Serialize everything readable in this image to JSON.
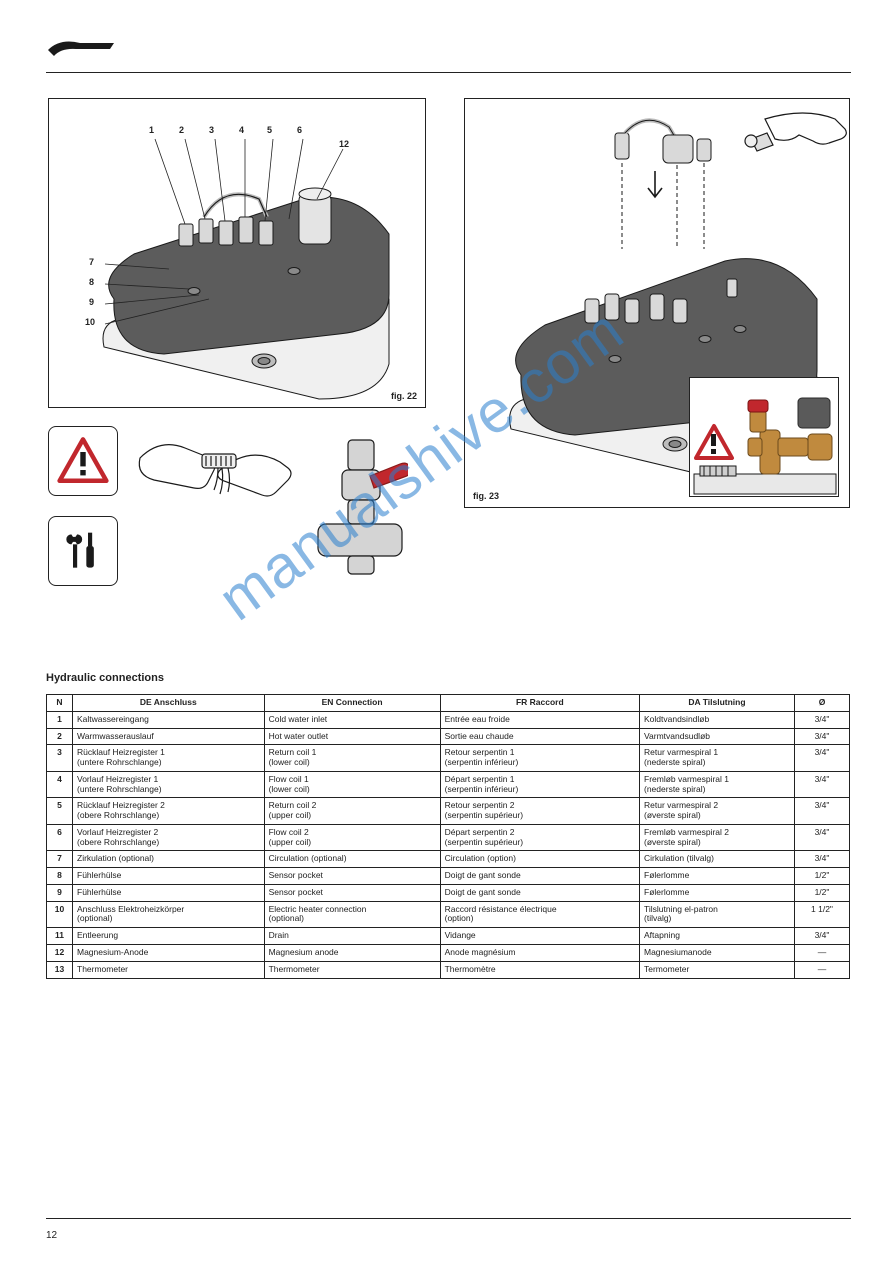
{
  "page": {
    "number": "12"
  },
  "watermark": "manualshive.com",
  "section_title": "Hydraulic connections",
  "figures": {
    "fig22": {
      "label": "fig. 22",
      "callouts": [
        "1",
        "2",
        "3",
        "4",
        "5",
        "6",
        "7",
        "8",
        "9",
        "10"
      ],
      "tank": {
        "top_color": "#5c5c5c",
        "body_color": "#f2f2f2",
        "outline": "#1a1a1a"
      }
    },
    "fig23": {
      "label": "fig. 23",
      "wrench_hint": true,
      "arrow_down": true,
      "inset_warning": true,
      "valve_brass": "#c08a3e",
      "valve_knob": "#c1272d",
      "actuator_grey": "#5a5a5a"
    },
    "warn_box": {
      "triangle_stroke": "#c1272d",
      "triangle_fill": "#ffffff"
    },
    "tool_box": {
      "wrench_color": "#1a1a1a",
      "screwdriver_color": "#1a1a1a"
    }
  },
  "table": {
    "columns": [
      {
        "hdr_n": "N",
        "hdr_de": "DE Anschluss",
        "hdr_en": "EN Connection",
        "hdr_fr": "FR Raccord",
        "hdr_da": "DA Tilslutning",
        "hdr_d": "Ø"
      }
    ],
    "rows": [
      {
        "n": "1",
        "de": "Kaltwassereingang",
        "en": "Cold water inlet",
        "fr": "Entrée eau froide",
        "da": "Koldtvandsindløb",
        "d": "3/4\""
      },
      {
        "n": "2",
        "de": "Warmwasserauslauf",
        "en": "Hot water outlet",
        "fr": "Sortie eau chaude",
        "da": "Varmtvandsudløb",
        "d": "3/4\""
      },
      {
        "n": "3",
        "de": "Rücklauf Heizregister 1\n(untere Rohrschlange)",
        "en": "Return coil 1\n(lower coil)",
        "fr": "Retour serpentin 1\n(serpentin inférieur)",
        "da": "Retur varmespiral 1\n(nederste spiral)",
        "d": "3/4\""
      },
      {
        "n": "4",
        "de": "Vorlauf Heizregister 1\n(untere Rohrschlange)",
        "en": "Flow coil 1\n(lower coil)",
        "fr": "Départ serpentin 1\n(serpentin inférieur)",
        "da": "Fremløb varmespiral 1\n(nederste spiral)",
        "d": "3/4\""
      },
      {
        "n": "5",
        "de": "Rücklauf Heizregister 2\n(obere Rohrschlange)",
        "en": "Return coil 2\n(upper coil)",
        "fr": "Retour serpentin 2\n(serpentin supérieur)",
        "da": "Retur varmespiral 2\n(øverste spiral)",
        "d": "3/4\""
      },
      {
        "n": "6",
        "de": "Vorlauf Heizregister 2\n(obere Rohrschlange)",
        "en": "Flow coil 2\n(upper coil)",
        "fr": "Départ serpentin 2\n(serpentin supérieur)",
        "da": "Fremløb varmespiral 2\n(øverste spiral)",
        "d": "3/4\""
      },
      {
        "n": "7",
        "de": "Zirkulation (optional)",
        "en": "Circulation (optional)",
        "fr": "Circulation (option)",
        "da": "Cirkulation (tilvalg)",
        "d": "3/4\""
      },
      {
        "n": "8",
        "de": "Fühlerhülse",
        "en": "Sensor pocket",
        "fr": "Doigt de gant sonde",
        "da": "Følerlomme",
        "d": "1/2\""
      },
      {
        "n": "9",
        "de": "Fühlerhülse",
        "en": "Sensor pocket",
        "fr": "Doigt de gant sonde",
        "da": "Følerlomme",
        "d": "1/2\""
      },
      {
        "n": "10",
        "de": "Anschluss Elektroheizkörper\n(optional)",
        "en": "Electric heater connection\n(optional)",
        "fr": "Raccord résistance électrique\n(option)",
        "da": "Tilslutning el-patron\n(tilvalg)",
        "d": "1 1/2\""
      },
      {
        "n": "11",
        "de": "Entleerung",
        "en": "Drain",
        "fr": "Vidange",
        "da": "Aftapning",
        "d": "3/4\""
      },
      {
        "n": "12",
        "de": "Magnesium-Anode",
        "en": "Magnesium anode",
        "fr": "Anode magnésium",
        "da": "Magnesiumanode",
        "d": "—"
      },
      {
        "n": "13",
        "de": "Thermometer",
        "en": "Thermometer",
        "fr": "Thermomètre",
        "da": "Termometer",
        "d": "—"
      }
    ]
  }
}
